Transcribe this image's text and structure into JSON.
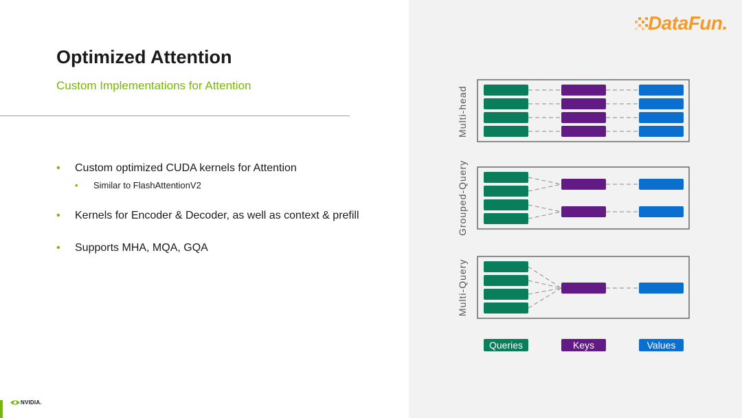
{
  "slide": {
    "title": "Optimized Attention",
    "subtitle": "Custom Implementations for Attention",
    "bullets": [
      {
        "text": "Custom optimized CUDA kernels for Attention",
        "sub": "Similar to FlashAttentionV2"
      },
      {
        "text": "Kernels for Encoder & Decoder, as well as context & prefill"
      },
      {
        "text": "Supports MHA, MQA, GQA"
      }
    ],
    "bullet_glyph": "•"
  },
  "diagram": {
    "sections": [
      "Multi-head",
      "Grouped-Query",
      "Multi-Query"
    ],
    "legend": {
      "queries": "Queries",
      "keys": "Keys",
      "values": "Values"
    },
    "colors": {
      "queries": "#0a7d5b",
      "keys": "#621b84",
      "values": "#0b6fd0"
    }
  },
  "branding": {
    "datafun": "DataFun.",
    "nvidia": "NVIDIA."
  }
}
